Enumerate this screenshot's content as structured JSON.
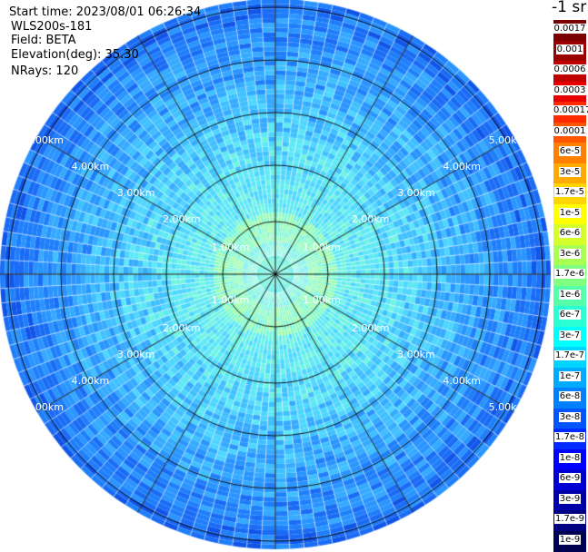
{
  "info": {
    "start_time": "Start time: 2023/08/01 06:26:34",
    "instrument": "WLS200s-181",
    "field": "Field: BETA",
    "elevation": "Elevation(deg): 35.30",
    "nrays": "NRays: 120"
  },
  "colorbar": {
    "title": "-1 sr",
    "labels": [
      "0.0017",
      "0.001",
      "0.0006",
      "0.0003",
      "0.00017",
      "0.0001",
      "6e-5",
      "3e-5",
      "1.7e-5",
      "1e-5",
      "6e-6",
      "3e-6",
      "1.7e-6",
      "1e-6",
      "6e-7",
      "3e-7",
      "1.7e-7",
      "1e-7",
      "6e-8",
      "3e-8",
      "1.7e-8",
      "1e-8",
      "6e-9",
      "3e-9",
      "1.7e-9",
      "1e-9"
    ],
    "colors": [
      "#7a0000",
      "#9a0000",
      "#c00000",
      "#e80000",
      "#ff2a00",
      "#ff5500",
      "#ff8000",
      "#ffaa00",
      "#ffd400",
      "#ffff00",
      "#d4ff2a",
      "#aaff55",
      "#80ff80",
      "#55ffaa",
      "#2affd4",
      "#00ffff",
      "#00d4ff",
      "#00aaff",
      "#0080ff",
      "#0055ff",
      "#002aff",
      "#0000ff",
      "#0000d4",
      "#0000aa",
      "#000080",
      "#000050"
    ]
  },
  "ppi": {
    "ring_labels": [
      "1.00km",
      "2.00km",
      "3.00km",
      "4.00km",
      "5.00km"
    ],
    "ray_count": 120,
    "spoke_count": 12
  }
}
